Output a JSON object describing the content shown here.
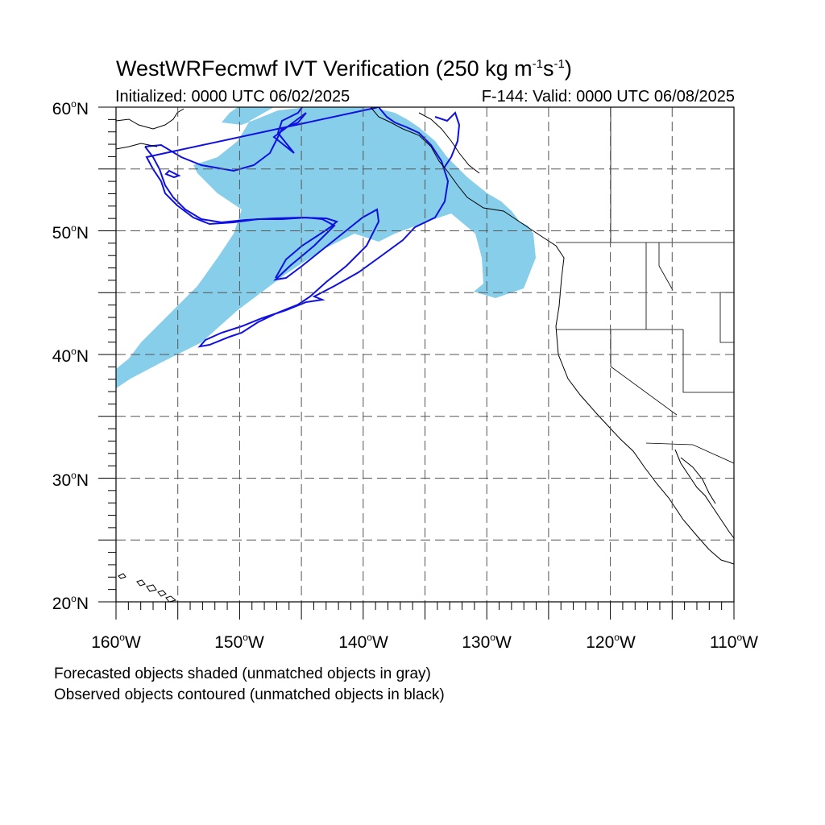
{
  "header": {
    "title_main": "WestWRFecmwf IVT Verification (250 kg m",
    "title_exp1": "-1",
    "title_mid": "s",
    "title_exp2": "-1",
    "title_end": ")",
    "initialized": "Initialized: 0000 UTC 06/02/2025",
    "valid": "F-144: Valid: 0000 UTC 06/08/2025"
  },
  "axes": {
    "lat_labels": [
      {
        "value": "60",
        "hemi": "N"
      },
      {
        "value": "50",
        "hemi": "N"
      },
      {
        "value": "40",
        "hemi": "N"
      },
      {
        "value": "30",
        "hemi": "N"
      },
      {
        "value": "20",
        "hemi": "N"
      }
    ],
    "lon_labels": [
      {
        "value": "160",
        "hemi": "W"
      },
      {
        "value": "150",
        "hemi": "W"
      },
      {
        "value": "140",
        "hemi": "W"
      },
      {
        "value": "130",
        "hemi": "W"
      },
      {
        "value": "120",
        "hemi": "W"
      },
      {
        "value": "110",
        "hemi": "W"
      }
    ],
    "extent": {
      "lon_min": -160,
      "lon_max": -110,
      "lat_min": 20,
      "lat_max": 60
    },
    "grid_spacing_deg": 5,
    "grid_style": "dashed"
  },
  "legend": {
    "forecast_note": "Forecasted objects shaded (unmatched objects in gray)",
    "observed_note": "Observed objects contoured (unmatched objects in black)"
  },
  "colors": {
    "forecast_fill": "#87ceeb",
    "observed_contour": "#1010e0",
    "coastline": "#000000",
    "grid": "#555555"
  },
  "icons": {
    "coastline": "north-america-west-coastline-icon",
    "islands": "hawaii-islands-icon"
  }
}
